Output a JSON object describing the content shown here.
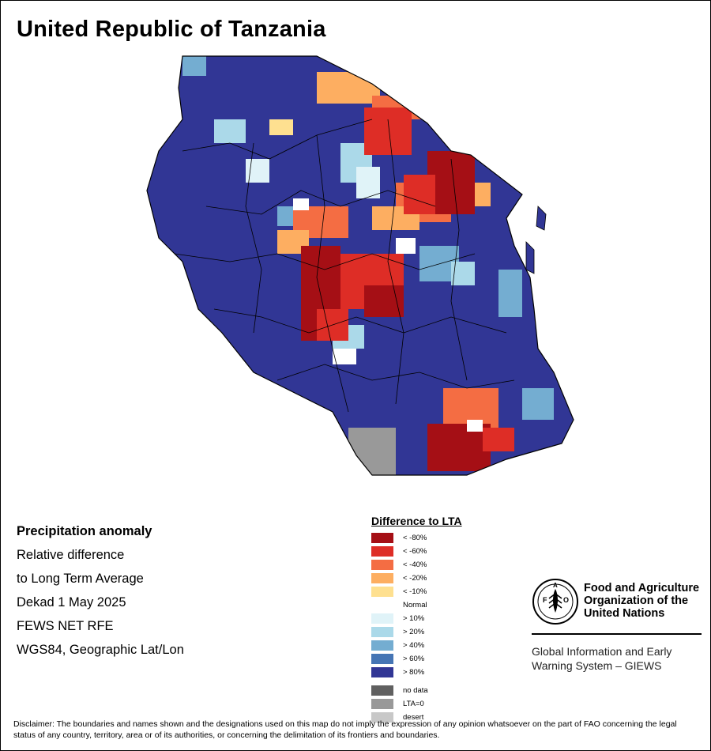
{
  "title": "United Republic of Tanzania",
  "info": {
    "heading": "Precipitation anomaly",
    "line1": "Relative difference",
    "line2": "to Long Term Average",
    "line3": "Dekad 1 May 2025",
    "line4": "FEWS NET RFE",
    "line5": "WGS84, Geographic Lat/Lon"
  },
  "legend": {
    "title": "Difference to LTA",
    "classes": [
      {
        "label": "< -80%",
        "color": "#a50f15"
      },
      {
        "label": "< -60%",
        "color": "#de2d26"
      },
      {
        "label": "< -40%",
        "color": "#f46d43"
      },
      {
        "label": "< -20%",
        "color": "#fdae61"
      },
      {
        "label": "< -10%",
        "color": "#fee090"
      },
      {
        "label": "Normal",
        "color": "#ffffff"
      },
      {
        "label": "> 10%",
        "color": "#e0f3f8"
      },
      {
        "label": "> 20%",
        "color": "#abd9e9"
      },
      {
        "label": "> 40%",
        "color": "#74add1"
      },
      {
        "label": "> 60%",
        "color": "#4575b4"
      },
      {
        "label": "> 80%",
        "color": "#313695"
      }
    ],
    "extra": [
      {
        "label": "no data",
        "color": "#606060"
      },
      {
        "label": "LTA=0",
        "color": "#999999"
      },
      {
        "label": "desert",
        "color": "#c8c8c8"
      }
    ]
  },
  "fao": {
    "name": "Food and Agriculture Organization of the United Nations",
    "giews": "Global Information and Early Warning System – GIEWS",
    "logo_letters": "FAO",
    "logo_motto": "FIAT PANIS"
  },
  "disclaimer": "Disclaimer: The boundaries and names shown and the designations used on this map do not imply the expression of any opinion whatsoever on the part of FAO concerning the legal status of any country, territory, area or of its authorities, or concerning the delimitation of its frontiers and boundaries."
}
